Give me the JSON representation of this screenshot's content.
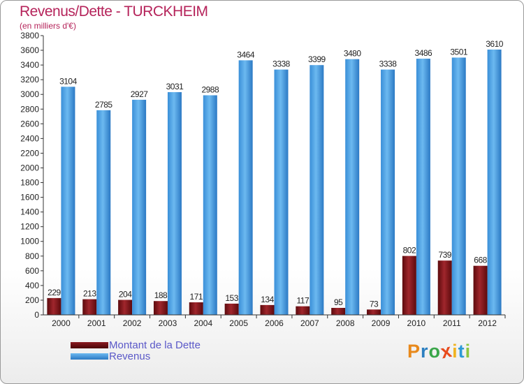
{
  "chart_data": {
    "type": "bar",
    "title": "Revenus/Dette - TURCKHEIM",
    "subtitle": "(en milliers d'€)",
    "categories": [
      "2000",
      "2001",
      "2002",
      "2003",
      "2004",
      "2005",
      "2006",
      "2007",
      "2008",
      "2009",
      "2010",
      "2011",
      "2012"
    ],
    "series": [
      {
        "name": "Montant de la Dette",
        "color": "#7a0f14",
        "values": [
          229,
          213,
          204,
          188,
          171,
          153,
          134,
          117,
          95,
          73,
          802,
          739,
          668
        ]
      },
      {
        "name": "Revenus",
        "color": "#4aa3e6",
        "values": [
          3104,
          2785,
          2927,
          3031,
          2988,
          3464,
          3338,
          3399,
          3480,
          3338,
          3486,
          3501,
          3610
        ]
      }
    ],
    "ylim": [
      0,
      3800
    ],
    "ytick_step": 200,
    "grid": false,
    "legend_position": "bottom-left"
  },
  "logo": {
    "text": "Proxiti",
    "letters": [
      "P",
      "r",
      "o",
      "x",
      "i",
      "t",
      "i"
    ],
    "colors": [
      "#e8891b",
      "#2c7fc0",
      "#3aa64a",
      "#e84a1c",
      "#f0b322",
      "#2c9ad6",
      "#8dc63f"
    ]
  }
}
